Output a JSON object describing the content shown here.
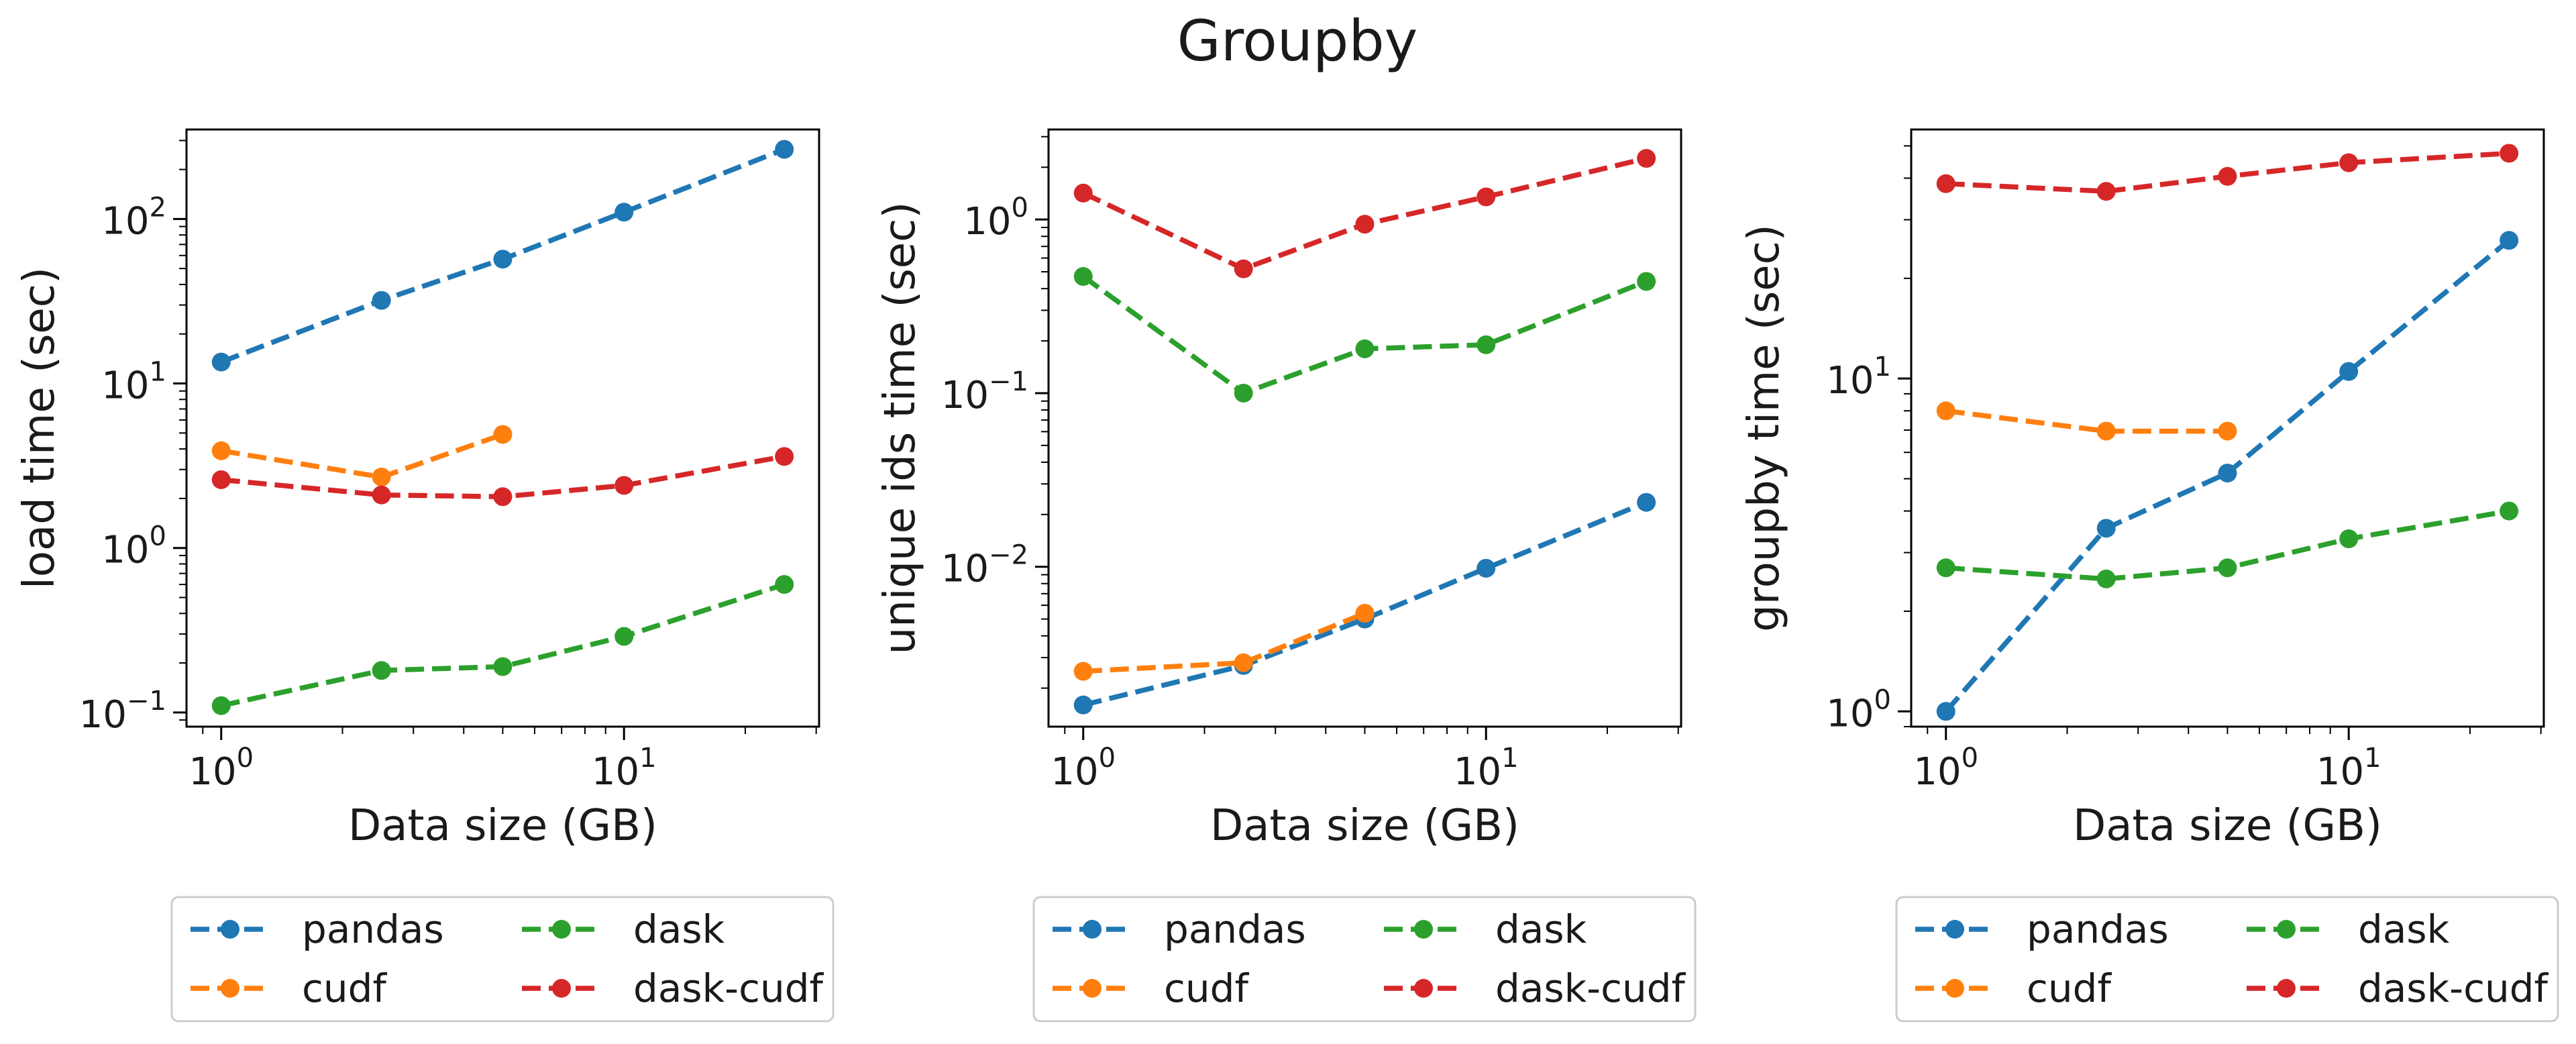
{
  "suptitle": "Groupby",
  "colors": {
    "pandas": "#1f77b4",
    "cudf": "#ff7f0e",
    "dask": "#2ca02c",
    "dask-cudf": "#d62728"
  },
  "chart_data": [
    {
      "type": "line",
      "xlabel": "Data size (GB)",
      "ylabel": "load time (sec)",
      "xscale": "log",
      "yscale": "log",
      "xlim": [
        0.82,
        30.5
      ],
      "ylim": [
        0.082,
        350
      ],
      "xticks": [
        {
          "value": 1,
          "base": "10",
          "exp": "0"
        },
        {
          "value": 10,
          "base": "10",
          "exp": "1"
        }
      ],
      "yticks": [
        {
          "value": 0.1,
          "base": "10",
          "exp": "−1"
        },
        {
          "value": 1,
          "base": "10",
          "exp": "0"
        },
        {
          "value": 10,
          "base": "10",
          "exp": "1"
        },
        {
          "value": 100,
          "base": "10",
          "exp": "2"
        }
      ],
      "legend": "below",
      "series": [
        {
          "name": "pandas",
          "x": [
            1,
            2.5,
            5,
            10,
            25
          ],
          "values": [
            13.5,
            32,
            57,
            110,
            265
          ]
        },
        {
          "name": "cudf",
          "x": [
            1,
            2.5,
            5
          ],
          "values": [
            3.9,
            2.7,
            4.9
          ]
        },
        {
          "name": "dask",
          "x": [
            1,
            2.5,
            5,
            10,
            25
          ],
          "values": [
            0.11,
            0.18,
            0.19,
            0.29,
            0.6
          ]
        },
        {
          "name": "dask-cudf",
          "x": [
            1,
            2.5,
            5,
            10,
            25
          ],
          "values": [
            2.6,
            2.1,
            2.05,
            2.4,
            3.6
          ]
        }
      ]
    },
    {
      "type": "line",
      "xlabel": "Data size (GB)",
      "ylabel": "unique ids time (sec)",
      "xscale": "log",
      "yscale": "log",
      "xlim": [
        0.82,
        30.5
      ],
      "ylim": [
        0.0012,
        3.3
      ],
      "xticks": [
        {
          "value": 1,
          "base": "10",
          "exp": "0"
        },
        {
          "value": 10,
          "base": "10",
          "exp": "1"
        }
      ],
      "yticks": [
        {
          "value": 0.01,
          "base": "10",
          "exp": "−2"
        },
        {
          "value": 0.1,
          "base": "10",
          "exp": "−1"
        },
        {
          "value": 1,
          "base": "10",
          "exp": "0"
        }
      ],
      "legend": "below",
      "series": [
        {
          "name": "pandas",
          "x": [
            1,
            2.5,
            5,
            10,
            25
          ],
          "values": [
            0.0016,
            0.0027,
            0.005,
            0.0098,
            0.0235
          ]
        },
        {
          "name": "cudf",
          "x": [
            1,
            2.5,
            5
          ],
          "values": [
            0.0025,
            0.0028,
            0.0054
          ]
        },
        {
          "name": "dask",
          "x": [
            1,
            2.5,
            5,
            10,
            25
          ],
          "values": [
            0.47,
            0.1,
            0.18,
            0.19,
            0.44
          ]
        },
        {
          "name": "dask-cudf",
          "x": [
            1,
            2.5,
            5,
            10,
            25
          ],
          "values": [
            1.42,
            0.52,
            0.94,
            1.35,
            2.25
          ]
        }
      ]
    },
    {
      "type": "line",
      "xlabel": "Data size (GB)",
      "ylabel": "groupby time (sec)",
      "xscale": "log",
      "yscale": "log",
      "xlim": [
        0.82,
        30.5
      ],
      "ylim": [
        0.9,
        56
      ],
      "xticks": [
        {
          "value": 1,
          "base": "10",
          "exp": "0"
        },
        {
          "value": 10,
          "base": "10",
          "exp": "1"
        }
      ],
      "yticks": [
        {
          "value": 1,
          "base": "10",
          "exp": "0"
        },
        {
          "value": 10,
          "base": "10",
          "exp": "1"
        }
      ],
      "legend": "below",
      "series": [
        {
          "name": "pandas",
          "x": [
            1,
            2.5,
            5,
            10,
            25
          ],
          "values": [
            1.0,
            3.55,
            5.2,
            10.5,
            26
          ]
        },
        {
          "name": "cudf",
          "x": [
            1,
            2.5,
            5
          ],
          "values": [
            8.0,
            6.95,
            6.95
          ]
        },
        {
          "name": "dask",
          "x": [
            1,
            2.5,
            5,
            10,
            25
          ],
          "values": [
            2.7,
            2.5,
            2.7,
            3.3,
            4.0
          ]
        },
        {
          "name": "dask-cudf",
          "x": [
            1,
            2.5,
            5,
            10,
            25
          ],
          "values": [
            38.5,
            36.5,
            40.5,
            44.5,
            47.5
          ]
        }
      ]
    }
  ]
}
